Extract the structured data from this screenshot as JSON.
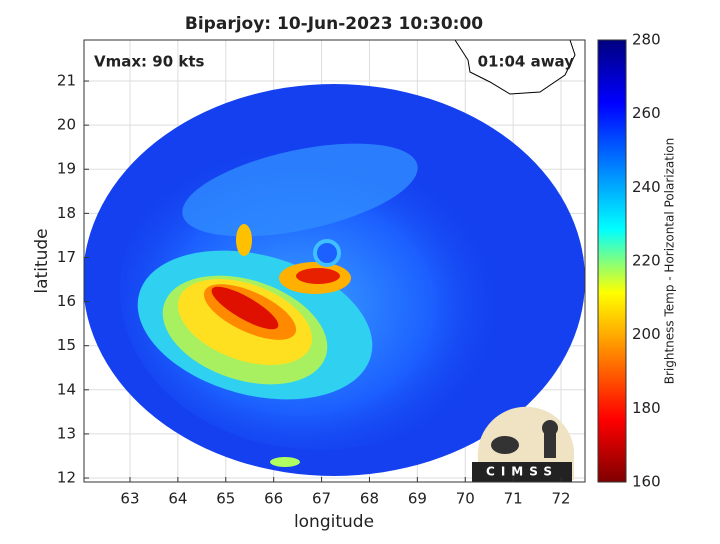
{
  "chart_data": {
    "type": "swath",
    "title": "Biparjoy: 10-Jun-2023 10:30:00",
    "xlabel": "longitude",
    "ylabel": "latitude",
    "xlim": [
      62.04,
      72.5
    ],
    "ylim": [
      11.91,
      21.93
    ],
    "xticks": [
      63,
      64,
      65,
      66,
      67,
      68,
      69,
      70,
      71,
      72
    ],
    "yticks": [
      12,
      13,
      14,
      15,
      16,
      17,
      18,
      19,
      20,
      21
    ],
    "grid": true,
    "annotations": [
      "Vmax: 90 kts",
      "01:04 away"
    ],
    "logo_text": "CIMSS",
    "colorbar": {
      "label": "Brightness Temp - Horizontal Polarization",
      "lim": [
        160,
        280
      ],
      "ticks": [
        160,
        180,
        200,
        220,
        240,
        260,
        280
      ],
      "colors": [
        "#800000",
        "#ff0000",
        "#ff8000",
        "#ffff00",
        "#00ffff",
        "#0080ff",
        "#0000ff",
        "#000080"
      ]
    }
  }
}
